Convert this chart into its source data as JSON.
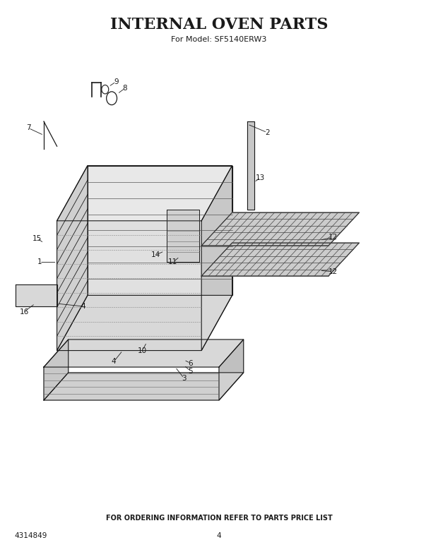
{
  "title": "INTERNAL OVEN PARTS",
  "subtitle": "For Model: SF5140ERW3",
  "footer_text": "FOR ORDERING INFORMATION REFER TO PARTS PRICE LIST",
  "part_number_left": "4314849",
  "page_number": "4",
  "bg_color": "#ffffff",
  "line_color": "#1a1a1a",
  "title_fontsize": 16,
  "subtitle_fontsize": 8,
  "footer_fontsize": 7
}
